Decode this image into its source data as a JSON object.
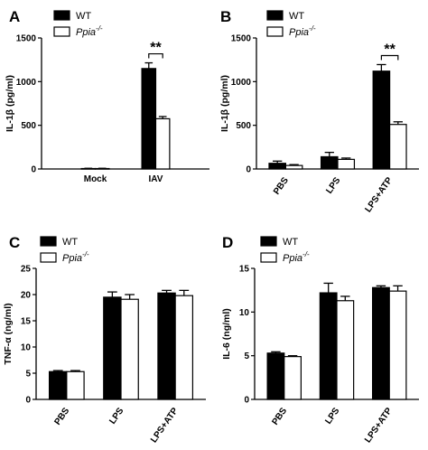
{
  "chart_data": [
    {
      "panel": "A",
      "type": "bar",
      "categories": [
        "Mock",
        "IAV"
      ],
      "series": [
        {
          "name": "WT",
          "values": [
            5,
            1150
          ],
          "errors": [
            3,
            65
          ],
          "color": "#000000"
        },
        {
          "name": "Ppia-/-",
          "values": [
            5,
            575
          ],
          "errors": [
            3,
            25
          ],
          "color": "#ffffff"
        }
      ],
      "xlabel": "",
      "ylabel": "IL-1β (pg/ml)",
      "ylim": [
        0,
        1500
      ],
      "yticks": [
        "0",
        "500",
        "1000",
        "1500"
      ],
      "annotations": [
        {
          "label": "**",
          "category": "IAV"
        }
      ],
      "legend": "top"
    },
    {
      "panel": "B",
      "type": "bar",
      "categories": [
        "PBS",
        "LPS",
        "LPS+ATP"
      ],
      "series": [
        {
          "name": "WT",
          "values": [
            65,
            140,
            1120
          ],
          "errors": [
            25,
            50,
            75
          ],
          "color": "#000000"
        },
        {
          "name": "Ppia-/-",
          "values": [
            40,
            110,
            510
          ],
          "errors": [
            10,
            15,
            30
          ],
          "color": "#ffffff"
        }
      ],
      "xlabel": "",
      "ylabel": "IL-1β (pg/ml)",
      "ylim": [
        0,
        1500
      ],
      "yticks": [
        "0",
        "500",
        "1000",
        "1500"
      ],
      "annotations": [
        {
          "label": "**",
          "category": "LPS+ATP"
        }
      ],
      "legend": "top"
    },
    {
      "panel": "C",
      "type": "bar",
      "categories": [
        "PBS",
        "LPS",
        "LPS+ATP"
      ],
      "series": [
        {
          "name": "WT",
          "values": [
            5.3,
            19.5,
            20.3
          ],
          "errors": [
            0.2,
            1.0,
            0.5
          ],
          "color": "#000000"
        },
        {
          "name": "Ppia-/-",
          "values": [
            5.3,
            19.1,
            19.8
          ],
          "errors": [
            0.2,
            0.9,
            1.0
          ],
          "color": "#ffffff"
        }
      ],
      "xlabel": "",
      "ylabel": "TNF-α (ng/ml)",
      "ylim": [
        0,
        25
      ],
      "yticks": [
        "0",
        "5",
        "10",
        "15",
        "20",
        "25"
      ],
      "annotations": [],
      "legend": "top"
    },
    {
      "panel": "D",
      "type": "bar",
      "categories": [
        "PBS",
        "LPS",
        "LPS+ATP"
      ],
      "series": [
        {
          "name": "WT",
          "values": [
            5.3,
            12.2,
            12.8
          ],
          "errors": [
            0.15,
            1.1,
            0.2
          ],
          "color": "#000000"
        },
        {
          "name": "Ppia-/-",
          "values": [
            4.9,
            11.3,
            12.4
          ],
          "errors": [
            0.1,
            0.5,
            0.6
          ],
          "color": "#ffffff"
        }
      ],
      "xlabel": "",
      "ylabel": "IL-6 (ng/ml)",
      "ylim": [
        0,
        15
      ],
      "yticks": [
        "0",
        "5",
        "10",
        "15"
      ],
      "annotations": [],
      "legend": "top"
    }
  ]
}
